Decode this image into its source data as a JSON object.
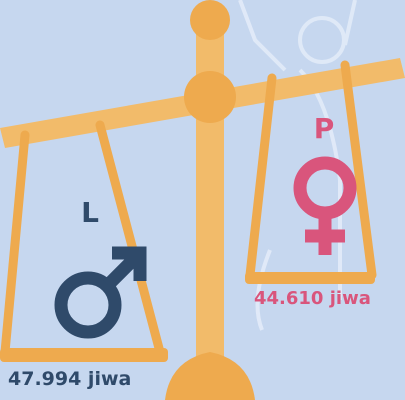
{
  "left": {
    "letter": "L",
    "label": "47.994 jiwa"
  },
  "right": {
    "letter": "P",
    "label": "44.610 jiwa"
  }
}
